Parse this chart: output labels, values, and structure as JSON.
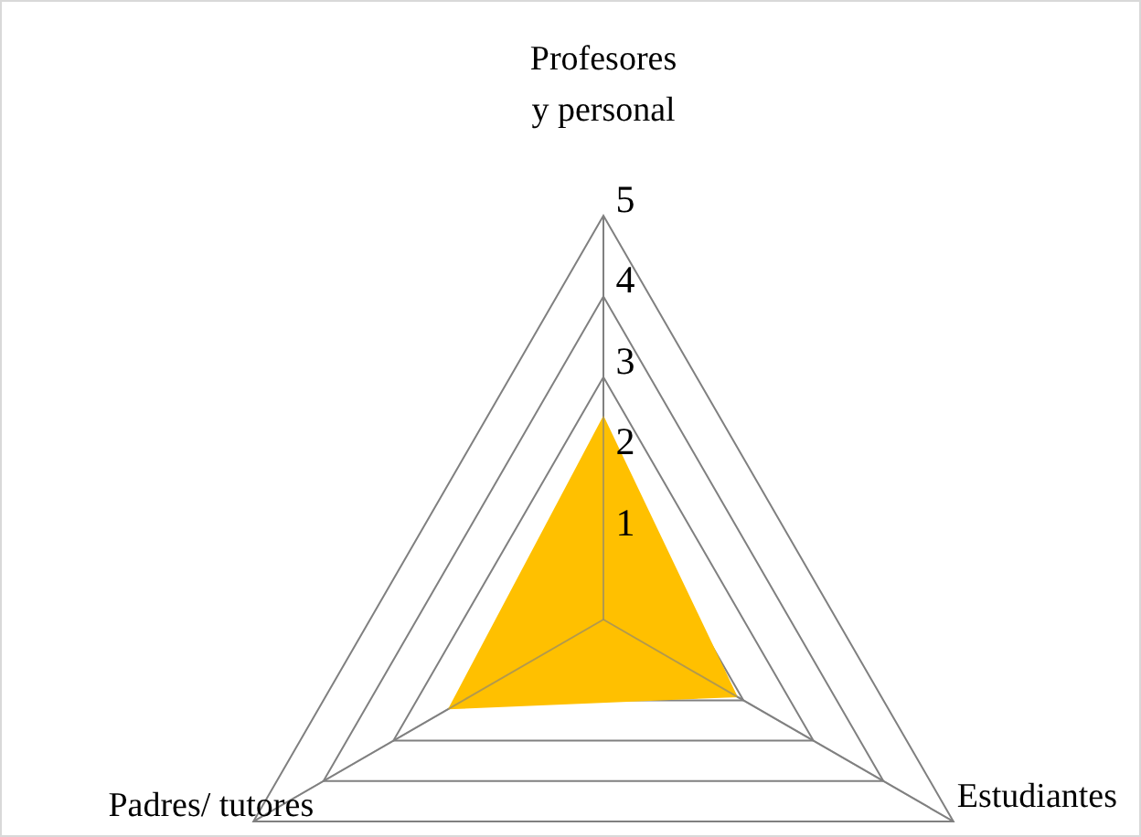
{
  "chart_data": {
    "type": "radar",
    "categories": [
      "Profesores\ny personal",
      "Estudiantes",
      "Padres/ tutores"
    ],
    "series": [
      {
        "color": "#ffc000",
        "values": [
          2.5,
          1.9,
          2.2
        ]
      }
    ],
    "ylim": [
      0,
      5
    ],
    "yticks": [
      1,
      2,
      3,
      4,
      5
    ],
    "grid": true
  }
}
